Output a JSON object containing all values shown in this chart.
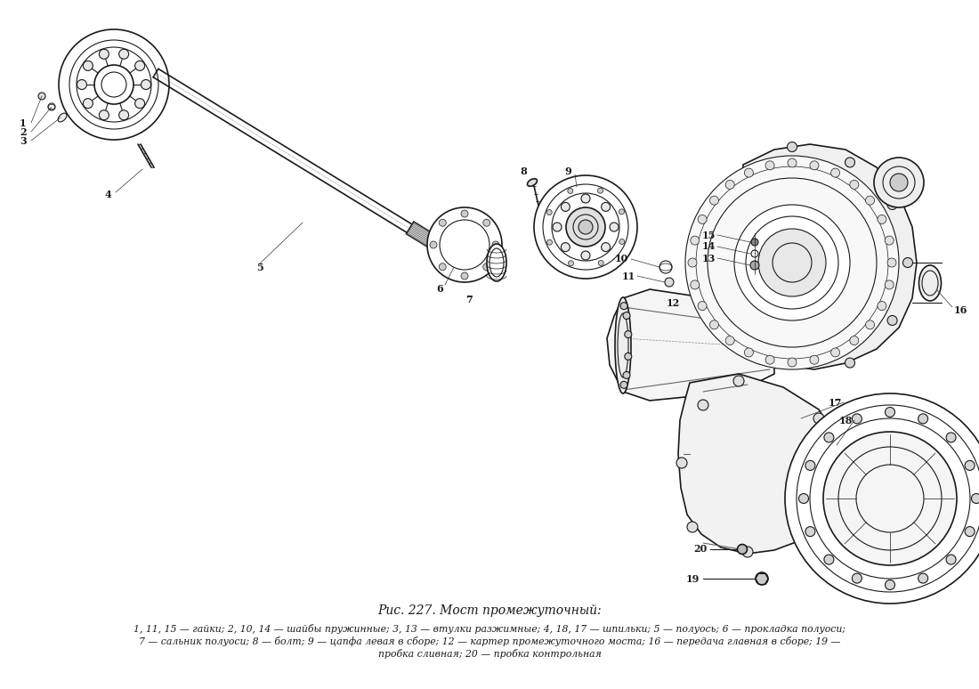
{
  "title": "Рис. 227. Мост промежуточный:",
  "caption_line1": "1, 11, 15 — гайки; 2, 10, 14 — шайбы пружинные; 3, 13 — втулки разжимные; 4, 18, 17 — шпильки; 5 — полуось; 6 — прокладка полуоси;",
  "caption_line2": "7 — сальник полуоси; 8 — болт; 9 — цапфа левая в сборе; 12 — картер промежуточного моста; 16 — передача главная в сборе; 19 —",
  "caption_line3": "пробка сливная; 20 — пробка контрольная",
  "bg_color": "#ffffff",
  "text_color": "#000000",
  "figsize": [
    11.0,
    7.74
  ],
  "dpi": 100
}
